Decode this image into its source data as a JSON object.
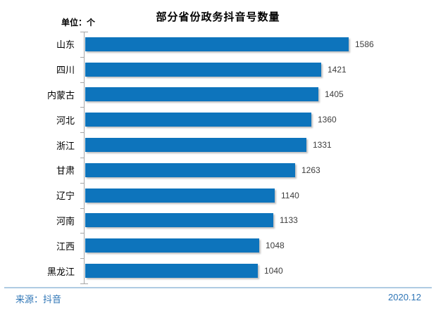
{
  "title": "部分省份政务抖音号数量",
  "unit_label": "单位：个",
  "chart_data": {
    "type": "bar",
    "orientation": "horizontal",
    "title": "部分省份政务抖音号数量",
    "unit": "个",
    "categories": [
      "山东",
      "四川",
      "内蒙古",
      "河北",
      "浙江",
      "甘肃",
      "辽宁",
      "河南",
      "江西",
      "黑龙江"
    ],
    "values": [
      1586,
      1421,
      1405,
      1360,
      1331,
      1263,
      1140,
      1133,
      1048,
      1040
    ],
    "value_labels_shown": true,
    "legend": "none",
    "grid": false,
    "sort_order": "descending"
  },
  "footer": {
    "source": "来源：抖音",
    "date": "2020.12"
  },
  "colors": {
    "bar": "#0D74BC",
    "axis": "#A6A6A6",
    "footer_text": "#2E75B6",
    "divider": "#AFCBE3",
    "value_label": "#3D3D3D"
  }
}
